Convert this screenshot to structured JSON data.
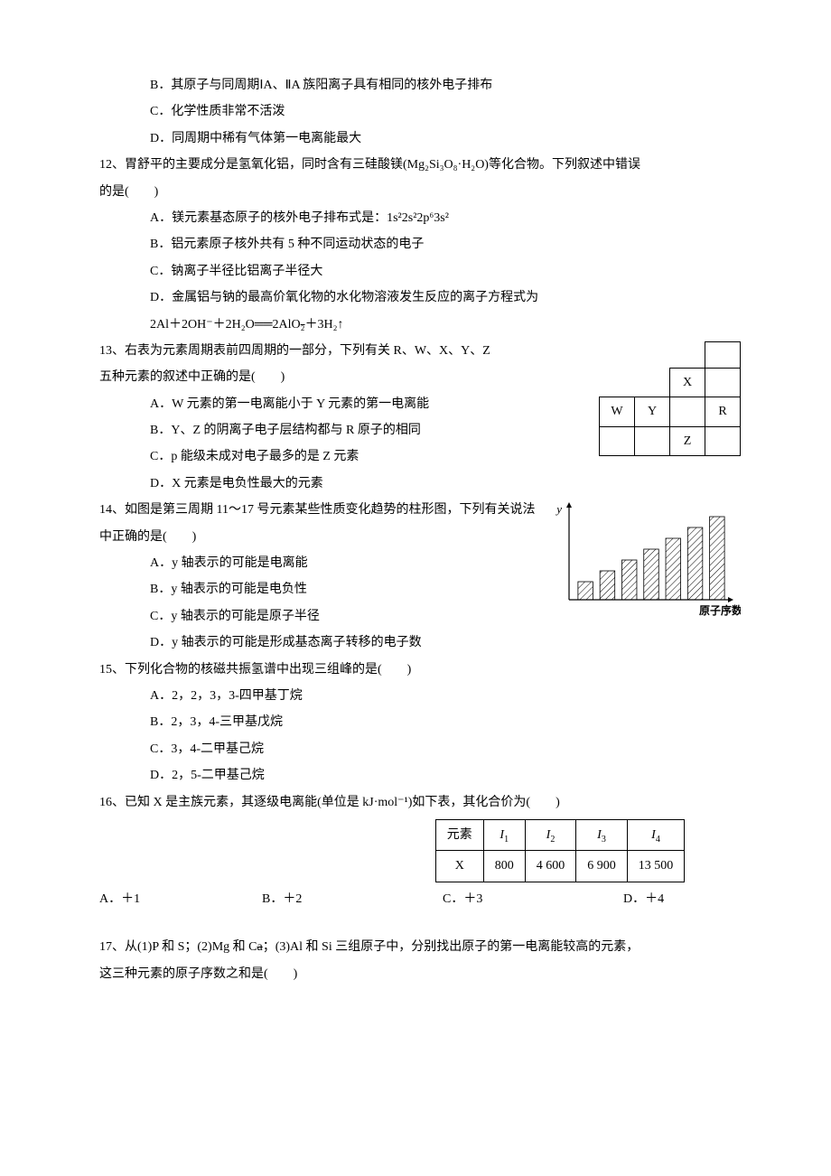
{
  "q11": {
    "optB": "B．其原子与同周期ⅠA、ⅡA 族阳离子具有相同的核外电子排布",
    "optC": "C．化学性质非常不活泼",
    "optD": "D．同周期中稀有气体第一电离能最大"
  },
  "q12": {
    "stem": "12、胃舒平的主要成分是氢氧化铝，同时含有三硅酸镁(Mg₂Si₃O₈·H₂O)等化合物。下列叙述中错误",
    "stem2": "的是(　　)",
    "optA": "A．镁元素基态原子的核外电子排布式是：1s²2s²2p⁶3s²",
    "optB": "B．铝元素原子核外共有 5 种不同运动状态的电子",
    "optC": "C．钠离子半径比铝离子半径大",
    "optD": "D．金属铝与钠的最高价氧化物的水化物溶液发生反应的离子方程式为",
    "optD2_pre": "2Al＋2OH⁻＋2H₂O══2AlO",
    "optD2_strike": "₂",
    "optD2_post": "＋3H₂↑"
  },
  "q13": {
    "stem1": "13、右表为元素周期表前四周期的一部分，下列有关 R、W、X、Y、Z",
    "stem2": "五种元素的叙述中正确的是(　　)",
    "optA": "A．W 元素的第一电离能小于 Y 元素的第一电离能",
    "optB": "B．Y、Z 的阴离子电子层结构都与 R 原子的相同",
    "optC": "C．p 能级未成对电子最多的是 Z 元素",
    "optD": "D．X 元素是电负性最大的元素",
    "table": {
      "X": "X",
      "W": "W",
      "Y": "Y",
      "R": "R",
      "Z": "Z"
    }
  },
  "q14": {
    "stem": "14、如图是第三周期 11～17 号元素某些性质变化趋势的柱形图，下列有关说法中正确的是(　　)",
    "optA": "A．y 轴表示的可能是电离能",
    "optB": "B．y 轴表示的可能是电负性",
    "optC": "C．y 轴表示的可能是原子半径",
    "optD": "D．y 轴表示的可能是形成基态离子转移的电子数",
    "chart": {
      "yLabel": "y",
      "xLabel": "原子序数",
      "bars": [
        20,
        32,
        44,
        56,
        68,
        80,
        92
      ],
      "barColor": "#000000",
      "background": "#ffffff",
      "hatched": true
    }
  },
  "q15": {
    "stem": "15、下列化合物的核磁共振氢谱中出现三组峰的是(　　)",
    "optA": "A．2，2，3，3-四甲基丁烷",
    "optB": "B．2，3，4-三甲基戊烷",
    "optC": "C．3，4-二甲基己烷",
    "optD": "D．2，5-二甲基己烷"
  },
  "q16": {
    "stem": "16、已知 X 是主族元素，其逐级电离能(单位是 kJ·mol⁻¹)如下表，其化合价为(　　)",
    "table": {
      "headers": [
        "元素",
        "I₁",
        "I₂",
        "I₃",
        "I₄"
      ],
      "row": [
        "X",
        "800",
        "4 600",
        "6 900",
        "13 500"
      ]
    },
    "optA": "A．＋1",
    "optB": "B．＋2",
    "optC": "C．＋3",
    "optD": "D．＋4"
  },
  "q17": {
    "stem1_pre": "17、从(1)P 和 S；(2)Mg 和 C",
    "stem1_strike": "a",
    "stem1_post": "；(3)Al 和 Si 三组原子中，分别找出原子的第一电离能较高的元素，",
    "stem2": "这三种元素的原子序数之和是(　　)"
  }
}
